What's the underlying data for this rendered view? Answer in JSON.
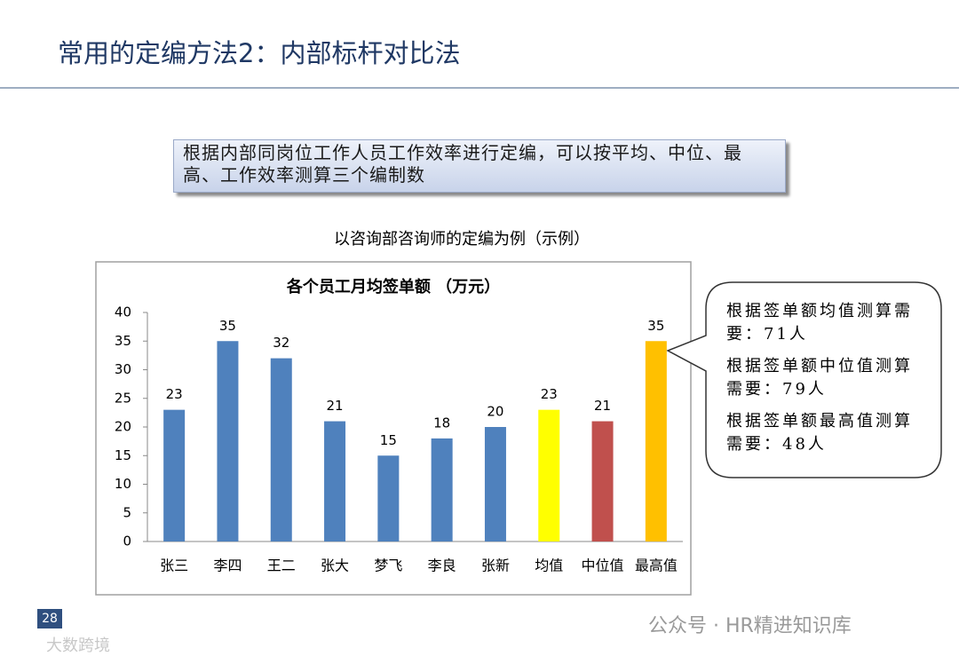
{
  "header": {
    "title": "常用的定编方法2：内部标杆对比法"
  },
  "info_box": "根据内部同岗位工作人员工作效率进行定编，可以按平均、中位、最高、工作效率测算三个编制数",
  "chart_caption": "以咨询部咨询师的定编为例（示例）",
  "chart_data": {
    "type": "bar",
    "title": "各个员工月均签单额 （万元）",
    "categories": [
      "张三",
      "李四",
      "王二",
      "张大",
      "梦飞",
      "李良",
      "张新",
      "均值",
      "中位值",
      "最高值"
    ],
    "values": [
      23,
      35,
      32,
      21,
      15,
      18,
      20,
      23,
      21,
      35
    ],
    "colors": [
      "#4f81bd",
      "#4f81bd",
      "#4f81bd",
      "#4f81bd",
      "#4f81bd",
      "#4f81bd",
      "#4f81bd",
      "#ffff00",
      "#c0504d",
      "#ffc000"
    ],
    "ylim": [
      0,
      40
    ],
    "yticks": [
      0,
      5,
      10,
      15,
      20,
      25,
      30,
      35,
      40
    ],
    "grid": false
  },
  "callout": [
    "根据签单额均值测算需要：71人",
    "根据签单额中位值测算需要：79人",
    "根据签单额最高值测算需要：48人"
  ],
  "footer": {
    "page_number": "28",
    "watermark": "公众号 · HR精进知识库",
    "logo_text": "大数跨境"
  }
}
